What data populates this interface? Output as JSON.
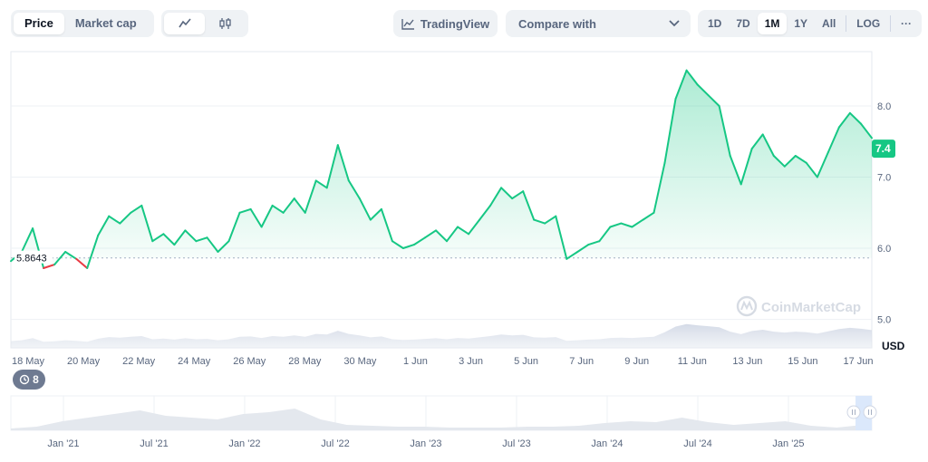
{
  "toolbar": {
    "price_label": "Price",
    "marketcap_label": "Market cap",
    "tradingview_label": "TradingView",
    "compare_label": "Compare with",
    "ranges": [
      "1D",
      "7D",
      "1M",
      "1Y",
      "All"
    ],
    "active_range": "1M",
    "log_label": "LOG",
    "more_label": "···"
  },
  "chart_data": {
    "type": "area",
    "x_tick_labels": [
      "18 May",
      "20 May",
      "22 May",
      "24 May",
      "26 May",
      "28 May",
      "30 May",
      "1 Jun",
      "3 Jun",
      "5 Jun",
      "7 Jun",
      "9 Jun",
      "11 Jun",
      "13 Jun",
      "15 Jun",
      "17 Jun"
    ],
    "y_ticks": [
      5.0,
      6.0,
      7.0,
      8.0
    ],
    "ylim": [
      4.6,
      8.7
    ],
    "y_unit": "USD",
    "reference_price": "5.8643",
    "current_price": "7.4",
    "values": [
      5.82,
      5.95,
      6.28,
      5.72,
      5.77,
      5.95,
      5.85,
      5.72,
      6.18,
      6.45,
      6.35,
      6.5,
      6.6,
      6.1,
      6.2,
      6.05,
      6.25,
      6.1,
      6.15,
      5.95,
      6.1,
      6.5,
      6.55,
      6.3,
      6.6,
      6.5,
      6.7,
      6.5,
      6.95,
      6.85,
      7.45,
      6.95,
      6.7,
      6.4,
      6.55,
      6.1,
      6.0,
      6.05,
      6.15,
      6.25,
      6.1,
      6.3,
      6.2,
      6.4,
      6.6,
      6.85,
      6.7,
      6.8,
      6.4,
      6.35,
      6.45,
      5.85,
      5.95,
      6.05,
      6.1,
      6.3,
      6.35,
      6.3,
      6.4,
      6.5,
      7.2,
      8.1,
      8.5,
      8.3,
      8.15,
      8.0,
      7.3,
      6.9,
      7.4,
      7.6,
      7.3,
      7.15,
      7.3,
      7.2,
      7.0,
      7.35,
      7.7,
      7.9,
      7.75,
      7.55
    ],
    "volume_label": "",
    "watermark": "CoinMarketCap",
    "navigator_labels": [
      "Jan '21",
      "Jul '21",
      "Jan '22",
      "Jul '22",
      "Jan '23",
      "Jul '23",
      "Jan '24",
      "Jul '24",
      "Jan '25"
    ],
    "series_color": "#16c784",
    "below_ref_color": "#ea3943"
  },
  "history_badge": "8"
}
